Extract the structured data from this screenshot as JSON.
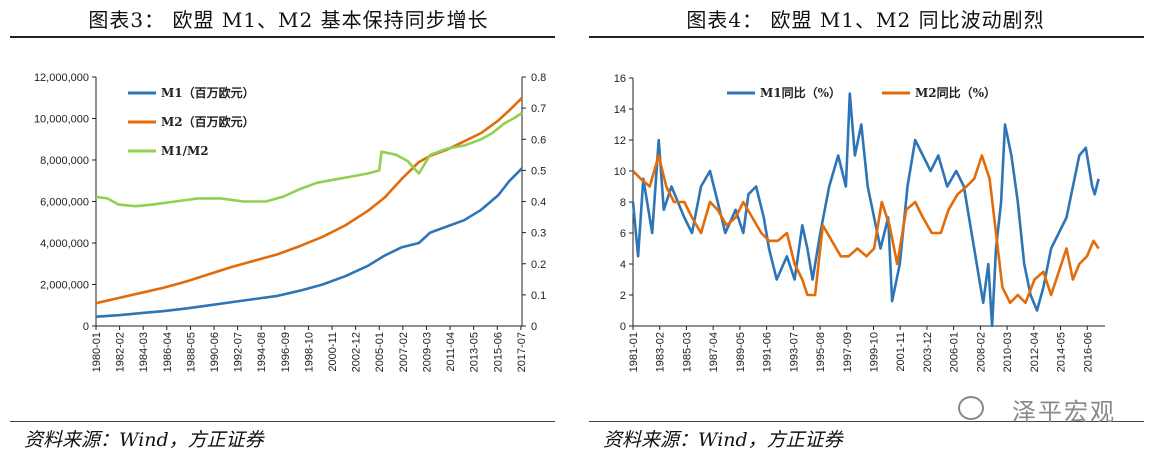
{
  "charts": {
    "left": {
      "title": "图表3：  欧盟 M1、M2 基本保持同步增长",
      "source": "资料来源：Wind，方正证券"
    },
    "right": {
      "title": "图表4：  欧盟 M1、M2 同比波动剧烈",
      "source": "资料来源：Wind，方正证券"
    }
  },
  "watermark": {
    "text": "泽平宏观",
    "icon": "wechat-icon"
  },
  "colors": {
    "M1": "#2e75b6",
    "M2": "#e26b0a",
    "M1M2": "#92d050",
    "axis": "#222222"
  },
  "chart_data": [
    {
      "type": "line",
      "title": "",
      "x_ticks": [
        "1980-01",
        "1982-02",
        "1984-03",
        "1986-04",
        "1988-05",
        "1990-06",
        "1992-07",
        "1994-08",
        "1996-09",
        "1998-10",
        "2000-11",
        "2002-12",
        "2005-01",
        "2007-02",
        "2009-03",
        "2011-04",
        "2013-05",
        "2015-06",
        "2017-07"
      ],
      "y_left": {
        "min": 0,
        "max": 12000000,
        "ticks": [
          "0",
          "2,000,000",
          "4,000,000",
          "6,000,000",
          "8,000,000",
          "10,000,000",
          "12,000,000"
        ]
      },
      "y_right": {
        "min": 0,
        "max": 0.8,
        "ticks": [
          "0",
          "0.1",
          "0.2",
          "0.3",
          "0.4",
          "0.5",
          "0.6",
          "0.7",
          "0.8"
        ]
      },
      "legend_position": "top-left",
      "series": [
        {
          "name": "M1（百万欧元）",
          "axis": "left",
          "x": [
            1980.0,
            1982.0,
            1984.0,
            1986.0,
            1988.0,
            1990.0,
            1992.0,
            1994.0,
            1996.0,
            1998.0,
            2000.0,
            2002.0,
            2004.0,
            2005.5,
            2007.0,
            2008.5,
            2009.5,
            2011.0,
            2012.5,
            2014.0,
            2015.5,
            2016.5,
            2017.6
          ],
          "values": [
            450000,
            520000,
            620000,
            720000,
            850000,
            1000000,
            1150000,
            1300000,
            1450000,
            1700000,
            2000000,
            2400000,
            2900000,
            3400000,
            3800000,
            4000000,
            4500000,
            4800000,
            5100000,
            5600000,
            6300000,
            7000000,
            7600000
          ]
        },
        {
          "name": "M2（百万欧元）",
          "axis": "left",
          "x": [
            1980.0,
            1982.0,
            1984.0,
            1986.0,
            1988.0,
            1990.0,
            1992.0,
            1994.0,
            1996.0,
            1998.0,
            2000.0,
            2002.0,
            2004.0,
            2005.5,
            2007.0,
            2008.5,
            2009.5,
            2011.0,
            2012.5,
            2014.0,
            2015.5,
            2016.5,
            2017.6
          ],
          "values": [
            1100000,
            1350000,
            1600000,
            1850000,
            2150000,
            2500000,
            2850000,
            3150000,
            3450000,
            3850000,
            4300000,
            4850000,
            5550000,
            6200000,
            7100000,
            7900000,
            8200000,
            8500000,
            8900000,
            9300000,
            9900000,
            10400000,
            11000000
          ]
        },
        {
          "name": "M1/M2",
          "axis": "right",
          "x": [
            1980.0,
            1981.0,
            1982.0,
            1983.5,
            1985.0,
            1987.0,
            1989.0,
            1991.0,
            1993.0,
            1995.0,
            1996.5,
            1998.0,
            1999.5,
            2001.0,
            2002.5,
            2004.0,
            2005.0,
            2005.2,
            2006.5,
            2007.5,
            2008.5,
            2009.5,
            2011.0,
            2012.5,
            2014.0,
            2015.0,
            2016.0,
            2017.0,
            2017.6
          ],
          "values": [
            0.415,
            0.41,
            0.39,
            0.385,
            0.39,
            0.4,
            0.41,
            0.41,
            0.4,
            0.4,
            0.415,
            0.44,
            0.46,
            0.47,
            0.48,
            0.49,
            0.5,
            0.56,
            0.55,
            0.53,
            0.49,
            0.55,
            0.57,
            0.58,
            0.6,
            0.62,
            0.65,
            0.67,
            0.685
          ]
        }
      ]
    },
    {
      "type": "line",
      "title": "",
      "x_ticks": [
        "1981-01",
        "1983-02",
        "1985-03",
        "1987-04",
        "1989-05",
        "1991-06",
        "1993-07",
        "1995-08",
        "1997-09",
        "1999-10",
        "2001-11",
        "2003-12",
        "2006-01",
        "2008-02",
        "2010-03",
        "2012-04",
        "2014-05",
        "2016-06"
      ],
      "y_left": {
        "min": 0,
        "max": 16,
        "ticks": [
          "0",
          "2",
          "4",
          "6",
          "8",
          "10",
          "12",
          "14",
          "16"
        ]
      },
      "legend_position": "top",
      "series": [
        {
          "name": "M1同比（%）",
          "x": [
            1981.0,
            1981.4,
            1981.8,
            1982.5,
            1983.0,
            1983.4,
            1984.0,
            1985.0,
            1985.6,
            1986.3,
            1987.0,
            1987.6,
            1988.2,
            1989.0,
            1989.6,
            1990.0,
            1990.6,
            1991.2,
            1991.6,
            1992.2,
            1993.0,
            1993.6,
            1994.2,
            1994.6,
            1995.0,
            1995.6,
            1996.3,
            1997.0,
            1997.6,
            1997.9,
            1998.3,
            1998.8,
            1999.3,
            1999.8,
            2000.3,
            2000.9,
            2001.2,
            2001.8,
            2002.4,
            2003.0,
            2003.6,
            2004.2,
            2004.8,
            2005.5,
            2006.2,
            2006.8,
            2007.2,
            2007.6,
            2008.0,
            2008.3,
            2008.7,
            2009.0,
            2009.3,
            2009.7,
            2010.0,
            2010.5,
            2011.0,
            2011.5,
            2012.0,
            2012.5,
            2013.0,
            2013.6,
            2014.2,
            2014.8,
            2015.3,
            2015.8,
            2016.3,
            2016.8,
            2017.0,
            2017.3
          ],
          "values": [
            8,
            4.5,
            9.5,
            6,
            12,
            7.5,
            9,
            7,
            6,
            9,
            10,
            8,
            6,
            7.5,
            6,
            8.5,
            9,
            7,
            5,
            3,
            4.5,
            3,
            6.5,
            5,
            3,
            6,
            9,
            11,
            9,
            15,
            11,
            13,
            9,
            7,
            5,
            7,
            1.6,
            4,
            9,
            12,
            11,
            10,
            11,
            9,
            10,
            9,
            7,
            5,
            3,
            1.5,
            4,
            0,
            5,
            8,
            13,
            11,
            8,
            4,
            2,
            1,
            2.5,
            5,
            6,
            7,
            9,
            11,
            11.5,
            9,
            8.5,
            9.5
          ]
        },
        {
          "name": "M2同比（%）",
          "x": [
            1981.0,
            1981.6,
            1982.3,
            1983.0,
            1983.6,
            1984.2,
            1985.0,
            1985.6,
            1986.3,
            1987.0,
            1987.6,
            1988.3,
            1989.0,
            1989.6,
            1990.3,
            1991.0,
            1991.6,
            1992.3,
            1993.0,
            1993.6,
            1994.2,
            1994.6,
            1995.2,
            1995.8,
            1996.5,
            1997.2,
            1997.8,
            1998.5,
            1999.2,
            1999.8,
            2000.4,
            2001.0,
            2001.6,
            2002.3,
            2003.0,
            2003.6,
            2004.3,
            2005.0,
            2005.6,
            2006.3,
            2007.0,
            2007.6,
            2008.2,
            2008.8,
            2009.3,
            2009.8,
            2010.4,
            2011.0,
            2011.6,
            2012.3,
            2013.0,
            2013.6,
            2014.2,
            2014.8,
            2015.3,
            2015.8,
            2016.4,
            2016.9,
            2017.3
          ],
          "values": [
            10,
            9.5,
            9,
            11,
            9,
            8,
            8,
            7,
            6,
            8,
            7.5,
            6.5,
            7,
            8,
            7,
            6,
            5.5,
            5.5,
            6,
            4,
            3,
            2,
            2,
            6.5,
            5.5,
            4.5,
            4.5,
            5,
            4.5,
            5,
            8,
            6.5,
            4,
            7.5,
            8,
            7,
            6,
            6,
            7.5,
            8.5,
            9,
            9.5,
            11,
            9.5,
            6,
            2.5,
            1.5,
            2,
            1.5,
            3,
            3.5,
            2,
            3.5,
            5,
            3,
            4,
            4.5,
            5.5,
            5
          ]
        }
      ]
    }
  ]
}
